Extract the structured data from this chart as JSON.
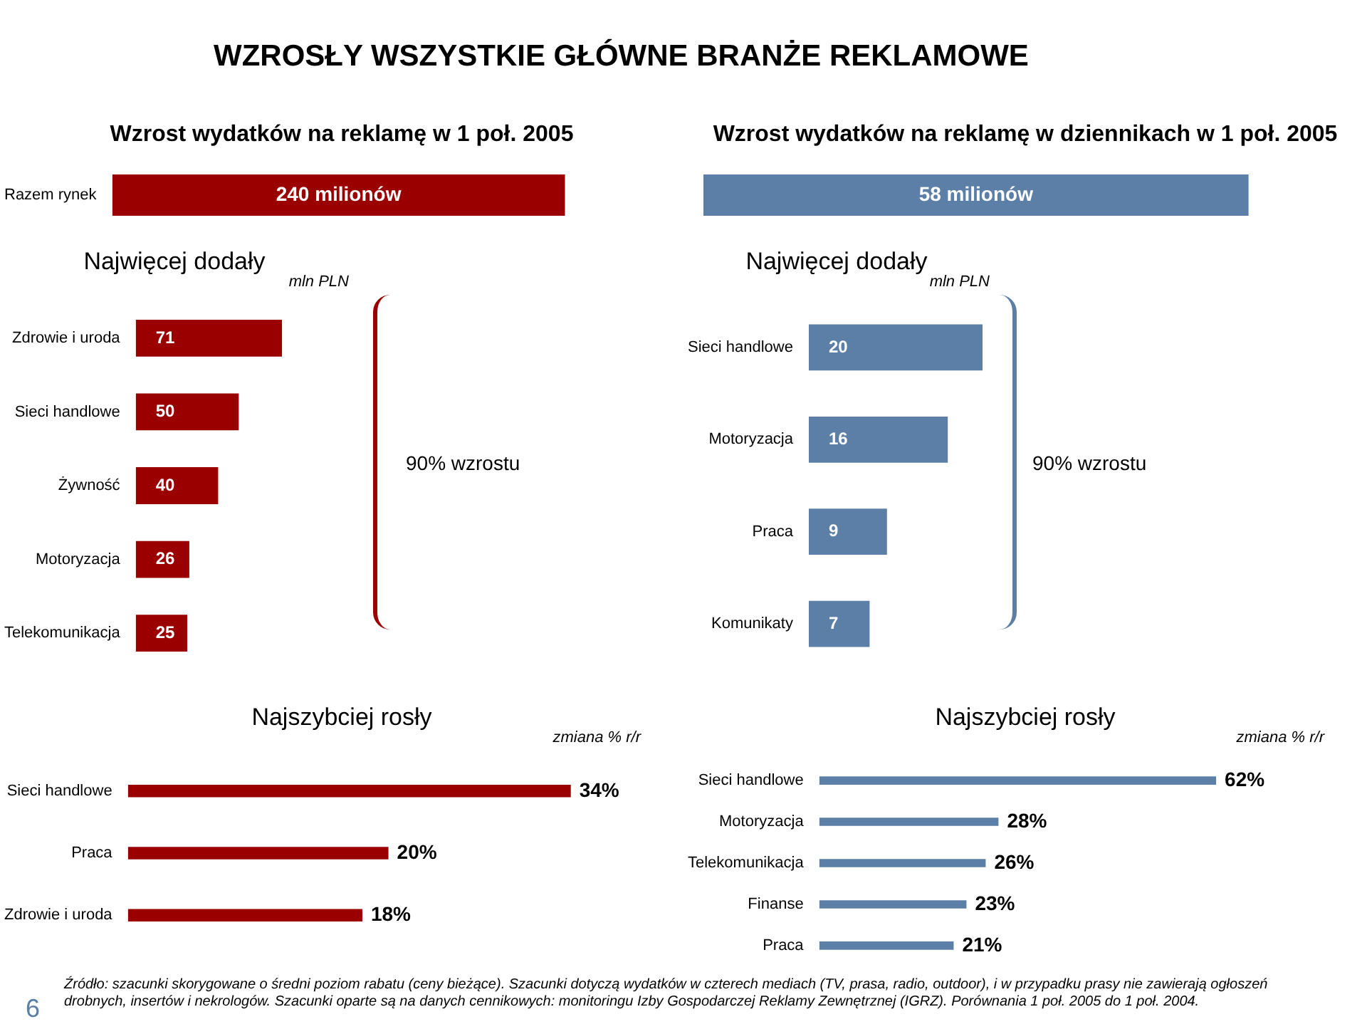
{
  "chart_data": [
    {
      "type": "bar",
      "orientation": "horizontal",
      "title": "WZROSŁY WSZYSTKIE GŁÓWNE BRANŻE REKLAMOWE",
      "subtitle": "Wzrost wydatków na reklamę w 1 poł. 2005",
      "categories": [
        "Razem rynek"
      ],
      "values": [
        240
      ],
      "value_labels": [
        "240 milionów"
      ],
      "color": "#9b0000"
    },
    {
      "type": "bar",
      "orientation": "horizontal",
      "subtitle": "Wzrost wydatków na reklamę w dziennikach w 1 poł. 2005",
      "categories": [
        null
      ],
      "values": [
        58
      ],
      "value_labels": [
        "58 milionów"
      ],
      "color": "#5b7fa6"
    },
    {
      "type": "bar",
      "orientation": "horizontal",
      "title": "Najwięcej dodały",
      "xlabel": "mln PLN",
      "categories": [
        "Zdrowie i uroda",
        "Sieci handlowe",
        "Żywność",
        "Motoryzacja",
        "Telekomunikacja"
      ],
      "values": [
        71,
        50,
        40,
        26,
        25
      ],
      "data_labels": true,
      "color": "#9b0000",
      "annotations": [
        "90% wzrostu"
      ]
    },
    {
      "type": "bar",
      "orientation": "horizontal",
      "title": "Najwięcej dodały",
      "xlabel": "mln PLN",
      "categories": [
        "Sieci handlowe",
        "Motoryzacja",
        "Praca",
        "Komunikaty"
      ],
      "values": [
        20,
        16,
        9,
        7
      ],
      "data_labels": true,
      "color": "#5b7fa6",
      "annotations": [
        "90% wzrostu"
      ]
    },
    {
      "type": "bar",
      "orientation": "horizontal",
      "title": "Najszybciej rosły",
      "xlabel": "zmiana % r/r",
      "categories": [
        "Sieci handlowe",
        "Praca",
        "Zdrowie i uroda"
      ],
      "values": [
        34,
        20,
        18
      ],
      "value_labels": [
        "34%",
        "20%",
        "18%"
      ],
      "color": "#9b0000"
    },
    {
      "type": "bar",
      "orientation": "horizontal",
      "title": "Najszybciej rosły",
      "xlabel": "zmiana % r/r",
      "categories": [
        "Sieci handlowe",
        "Motoryzacja",
        "Telekomunikacja",
        "Finanse",
        "Praca"
      ],
      "values": [
        62,
        28,
        26,
        23,
        21
      ],
      "value_labels": [
        "62%",
        "28%",
        "26%",
        "23%",
        "21%"
      ],
      "color": "#5b7fa6",
      "annotations": [
        "6",
        "Źródło: szacunki skorygowane o średni poziom rabatu (ceny bieżące). Szacunki dotyczą wydatków w czterech mediach (TV, prasa, radio, outdoor), i w przypadku prasy nie zawierają ogłoszeń drobnych, insertów i nekrologów. Szacunki oparte są na danych cennikowych: monitoringu Izby Gospodarczej Reklamy Zewnętrznej (IGRZ). Porównania 1 poł. 2005 do 1 poł. 2004."
      ]
    }
  ]
}
